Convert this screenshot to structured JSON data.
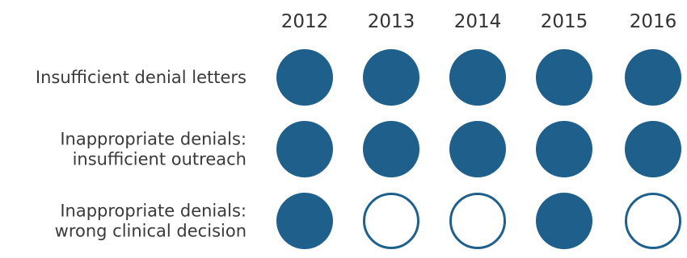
{
  "chart_data": {
    "type": "table",
    "columns": [
      "2012",
      "2013",
      "2014",
      "2015",
      "2016"
    ],
    "rows": [
      {
        "label_lines": [
          "Insufficient denial letters"
        ],
        "values": [
          true,
          true,
          true,
          true,
          true
        ]
      },
      {
        "label_lines": [
          "Inappropriate denials:",
          "insufficient outreach"
        ],
        "values": [
          true,
          true,
          true,
          true,
          true
        ]
      },
      {
        "label_lines": [
          "Inappropriate denials:",
          "wrong clinical decision"
        ],
        "values": [
          true,
          false,
          false,
          true,
          false
        ]
      }
    ],
    "colors": {
      "filled": "#1f5f8b",
      "outline": "#1f5f8b",
      "empty_fill": "#ffffff",
      "label_text": "#3a3a3a",
      "year_text": "#333333"
    }
  }
}
